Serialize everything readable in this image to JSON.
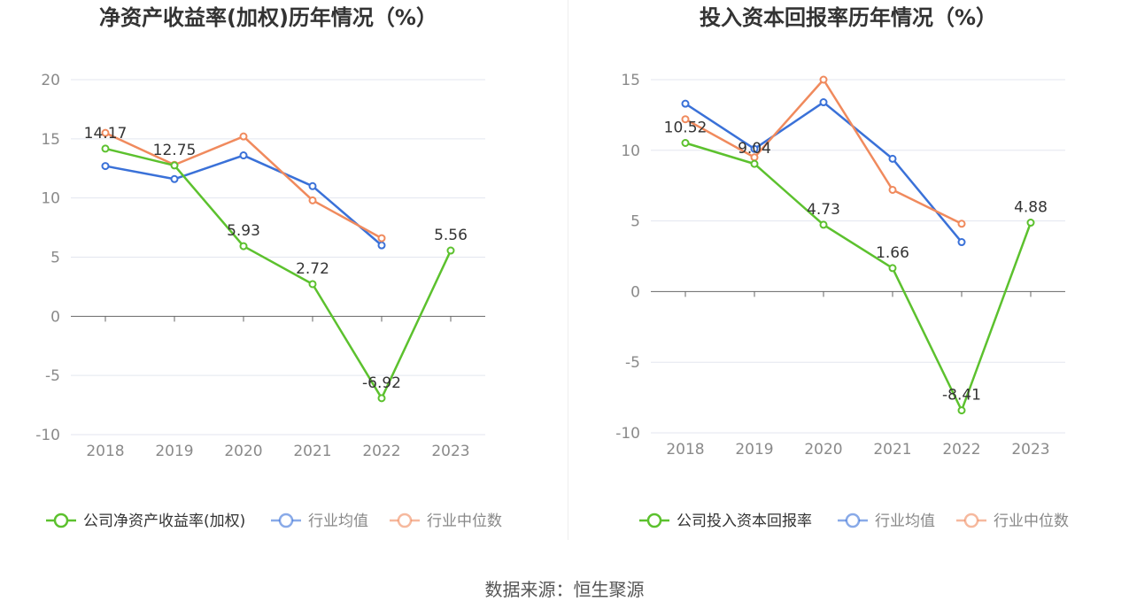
{
  "source_label": "数据来源：恒生聚源",
  "colors": {
    "company": "#5cc12e",
    "industry_avg": "#3a71d8",
    "industry_median": "#f08a5d",
    "grid": "#e3e6ef",
    "axis": "#666666",
    "tick_text": "#8a8a8a",
    "title": "#333333"
  },
  "chart_data": [
    {
      "type": "line",
      "title": "净资产收益率(加权)历年情况（%）",
      "categories": [
        "2018",
        "2019",
        "2020",
        "2021",
        "2022",
        "2023"
      ],
      "ylim": [
        -10,
        20
      ],
      "yticks": [
        20,
        15,
        10,
        5,
        0,
        -5,
        -10
      ],
      "grid": true,
      "legend_position": "bottom",
      "series": [
        {
          "name": "公司净资产收益率(加权)",
          "color_key": "company",
          "values": [
            14.17,
            12.75,
            5.93,
            2.72,
            -6.92,
            5.56
          ],
          "labels": [
            "14.17",
            "12.75",
            "5.93",
            "2.72",
            "-6.92",
            "5.56"
          ]
        },
        {
          "name": "行业均值",
          "color_key": "industry_avg",
          "values": [
            12.7,
            11.6,
            13.6,
            11.0,
            6.0,
            null
          ]
        },
        {
          "name": "行业中位数",
          "color_key": "industry_median",
          "values": [
            15.5,
            12.8,
            15.2,
            9.8,
            6.6,
            null
          ]
        }
      ]
    },
    {
      "type": "line",
      "title": "投入资本回报率历年情况（%）",
      "categories": [
        "2018",
        "2019",
        "2020",
        "2021",
        "2022",
        "2023"
      ],
      "ylim": [
        -10,
        15
      ],
      "yticks": [
        15,
        10,
        5,
        0,
        -5,
        -10
      ],
      "grid": true,
      "legend_position": "bottom",
      "series": [
        {
          "name": "公司投入资本回报率",
          "color_key": "company",
          "values": [
            10.52,
            9.04,
            4.73,
            1.66,
            -8.41,
            4.88
          ],
          "labels": [
            "10.52",
            "9.04",
            "4.73",
            "1.66",
            "-8.41",
            "4.88"
          ]
        },
        {
          "name": "行业均值",
          "color_key": "industry_avg",
          "values": [
            13.3,
            10.1,
            13.4,
            9.4,
            3.5,
            null
          ]
        },
        {
          "name": "行业中位数",
          "color_key": "industry_median",
          "values": [
            12.2,
            9.5,
            15.0,
            7.2,
            4.8,
            null
          ]
        }
      ]
    }
  ]
}
